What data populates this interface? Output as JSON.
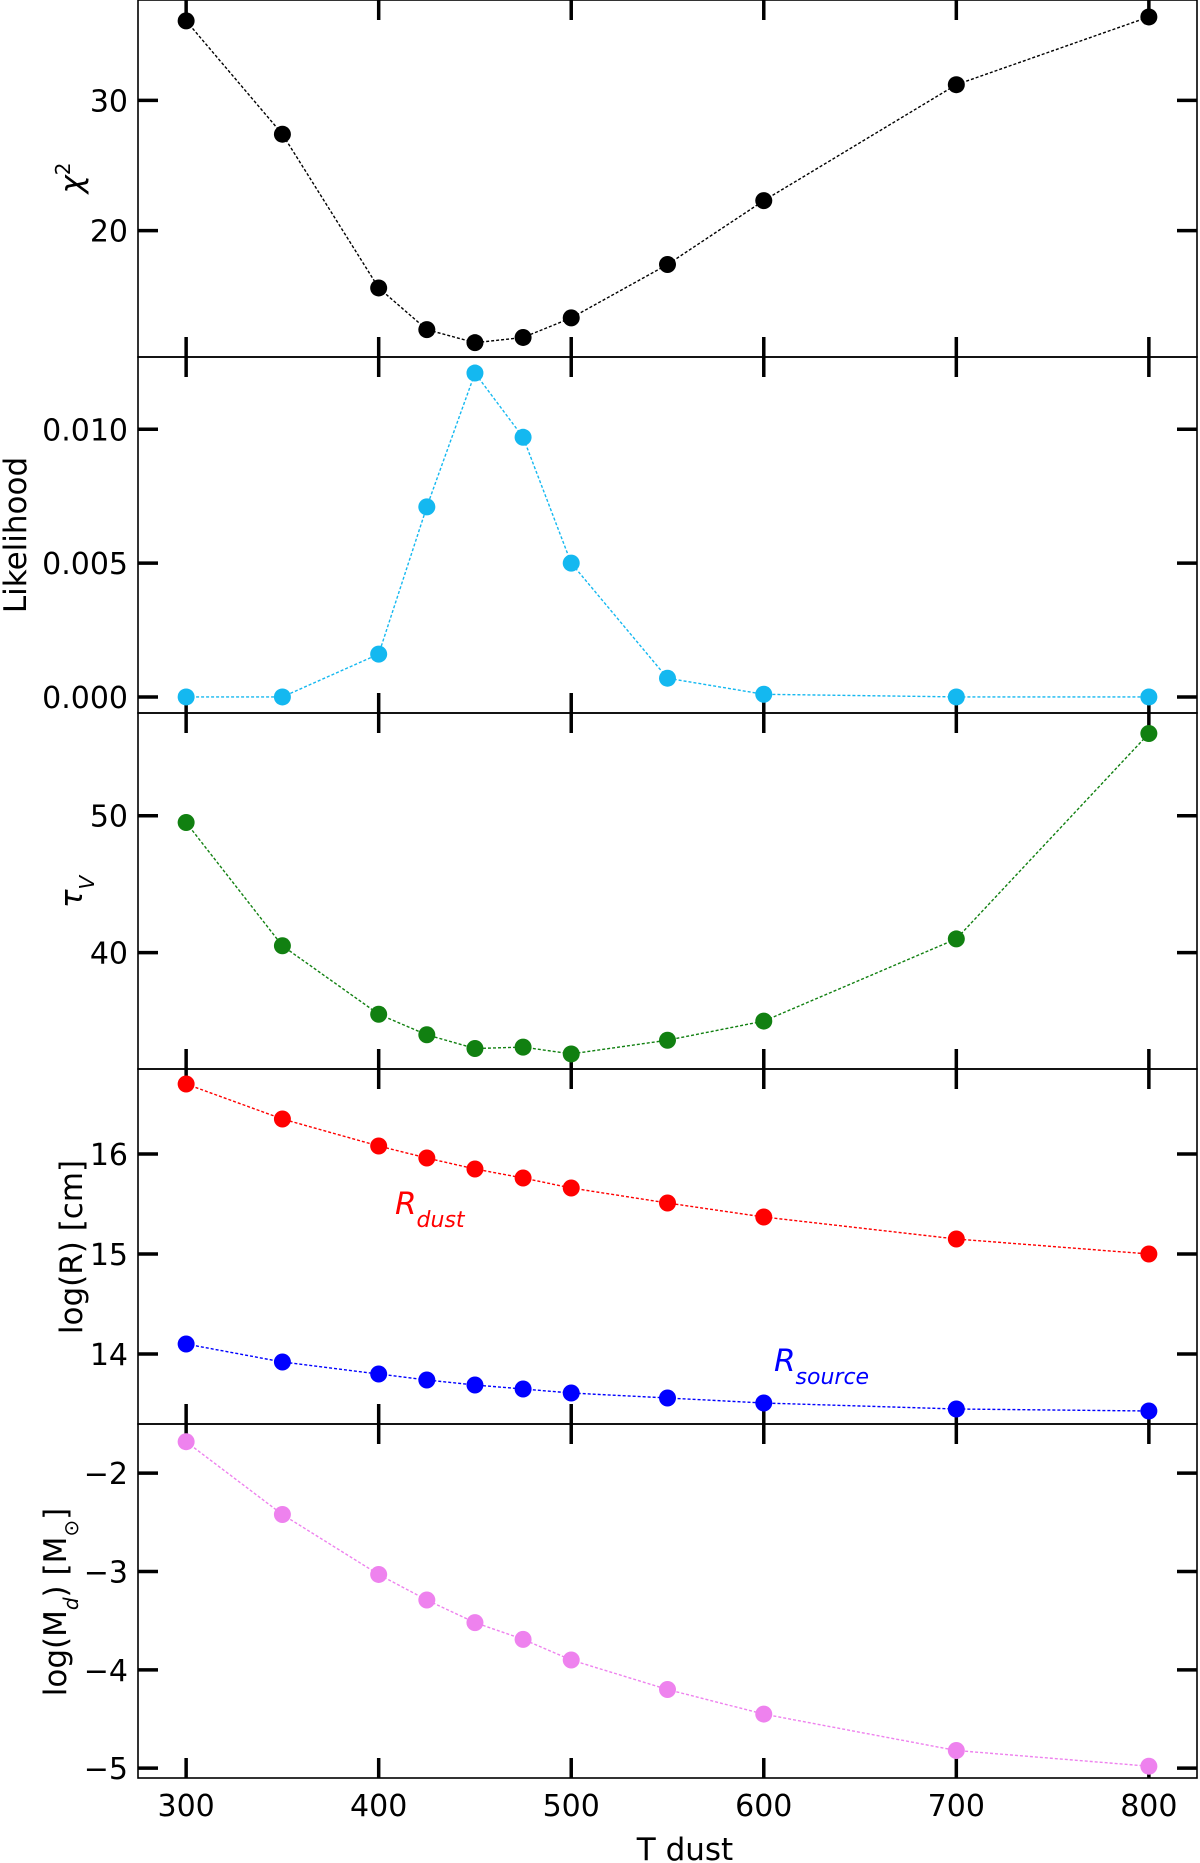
{
  "chart_data": {
    "type": "line",
    "shared_x": {
      "label": "T dust",
      "ticks": [
        300,
        400,
        500,
        600,
        700,
        800
      ],
      "xlim": [
        275,
        825
      ],
      "x": [
        300,
        350,
        400,
        425,
        450,
        475,
        500,
        550,
        600,
        700,
        800
      ]
    },
    "panels": [
      {
        "id": "chi2",
        "ylabel_main": "χ",
        "ylabel_sup": "2",
        "ylim": [
          10.3,
          37.7
        ],
        "yticks": [
          20,
          30
        ],
        "series": [
          {
            "name": "chi2",
            "color": "#000000",
            "values": [
              36.1,
              27.4,
              15.6,
              12.4,
              11.4,
              11.8,
              13.3,
              17.4,
              22.3,
              31.2,
              36.4
            ]
          }
        ]
      },
      {
        "id": "likelihood",
        "ylabel_main": "Likelihood",
        "ylim": [
          -0.0006,
          0.0127
        ],
        "yticks": [
          0.0,
          0.005,
          0.01
        ],
        "ytick_labels": [
          "0.000",
          "0.005",
          "0.010"
        ],
        "series": [
          {
            "name": "likelihood",
            "color": "#14b8f0",
            "values": [
              0.0,
              0.0,
              0.0016,
              0.0071,
              0.0121,
              0.0097,
              0.005,
              0.0007,
              0.0001,
              0.0,
              0.0
            ]
          }
        ]
      },
      {
        "id": "tauv",
        "ylabel_main": "τ",
        "ylabel_sub": "V",
        "ylim": [
          31.5,
          57.5
        ],
        "yticks": [
          40,
          50
        ],
        "series": [
          {
            "name": "tau_V",
            "color": "#118011",
            "values": [
              49.5,
              40.5,
              35.5,
              34.0,
              33.0,
              33.1,
              32.6,
              33.6,
              35.0,
              41.0,
              56.0
            ]
          }
        ]
      },
      {
        "id": "logr",
        "ylabel_main": "log(R) [cm]",
        "ylim": [
          13.3,
          16.85
        ],
        "yticks": [
          14,
          15,
          16
        ],
        "series": [
          {
            "name": "R_dust",
            "color": "#ff0000",
            "values": [
              16.7,
              16.35,
              16.08,
              15.96,
              15.85,
              15.76,
              15.66,
              15.51,
              15.37,
              15.15,
              15.0
            ]
          },
          {
            "name": "R_source",
            "color": "#0000ff",
            "values": [
              14.1,
              13.92,
              13.8,
              13.74,
              13.69,
              13.65,
              13.61,
              13.56,
              13.51,
              13.45,
              13.43
            ]
          }
        ],
        "annotations": [
          {
            "base": "R",
            "sub": "dust",
            "color": "#ff0000"
          },
          {
            "base": "R",
            "sub": "source",
            "color": "#0000ff"
          }
        ]
      },
      {
        "id": "logmd",
        "ylabel_pre": "log(M",
        "ylabel_sub": "d",
        "ylabel_post": ") [M",
        "ylabel_sun": "⊙",
        "ylabel_end": "]",
        "ylim": [
          -5.1,
          -1.5
        ],
        "yticks": [
          -5,
          -4,
          -3,
          -2
        ],
        "ytick_labels": [
          "−5",
          "−4",
          "−3",
          "−2"
        ],
        "series": [
          {
            "name": "log_Md",
            "color": "#ee82ee",
            "values": [
              -1.68,
              -2.42,
              -3.03,
              -3.29,
              -3.52,
              -3.69,
              -3.9,
              -4.2,
              -4.45,
              -4.82,
              -4.98
            ]
          }
        ]
      }
    ]
  }
}
